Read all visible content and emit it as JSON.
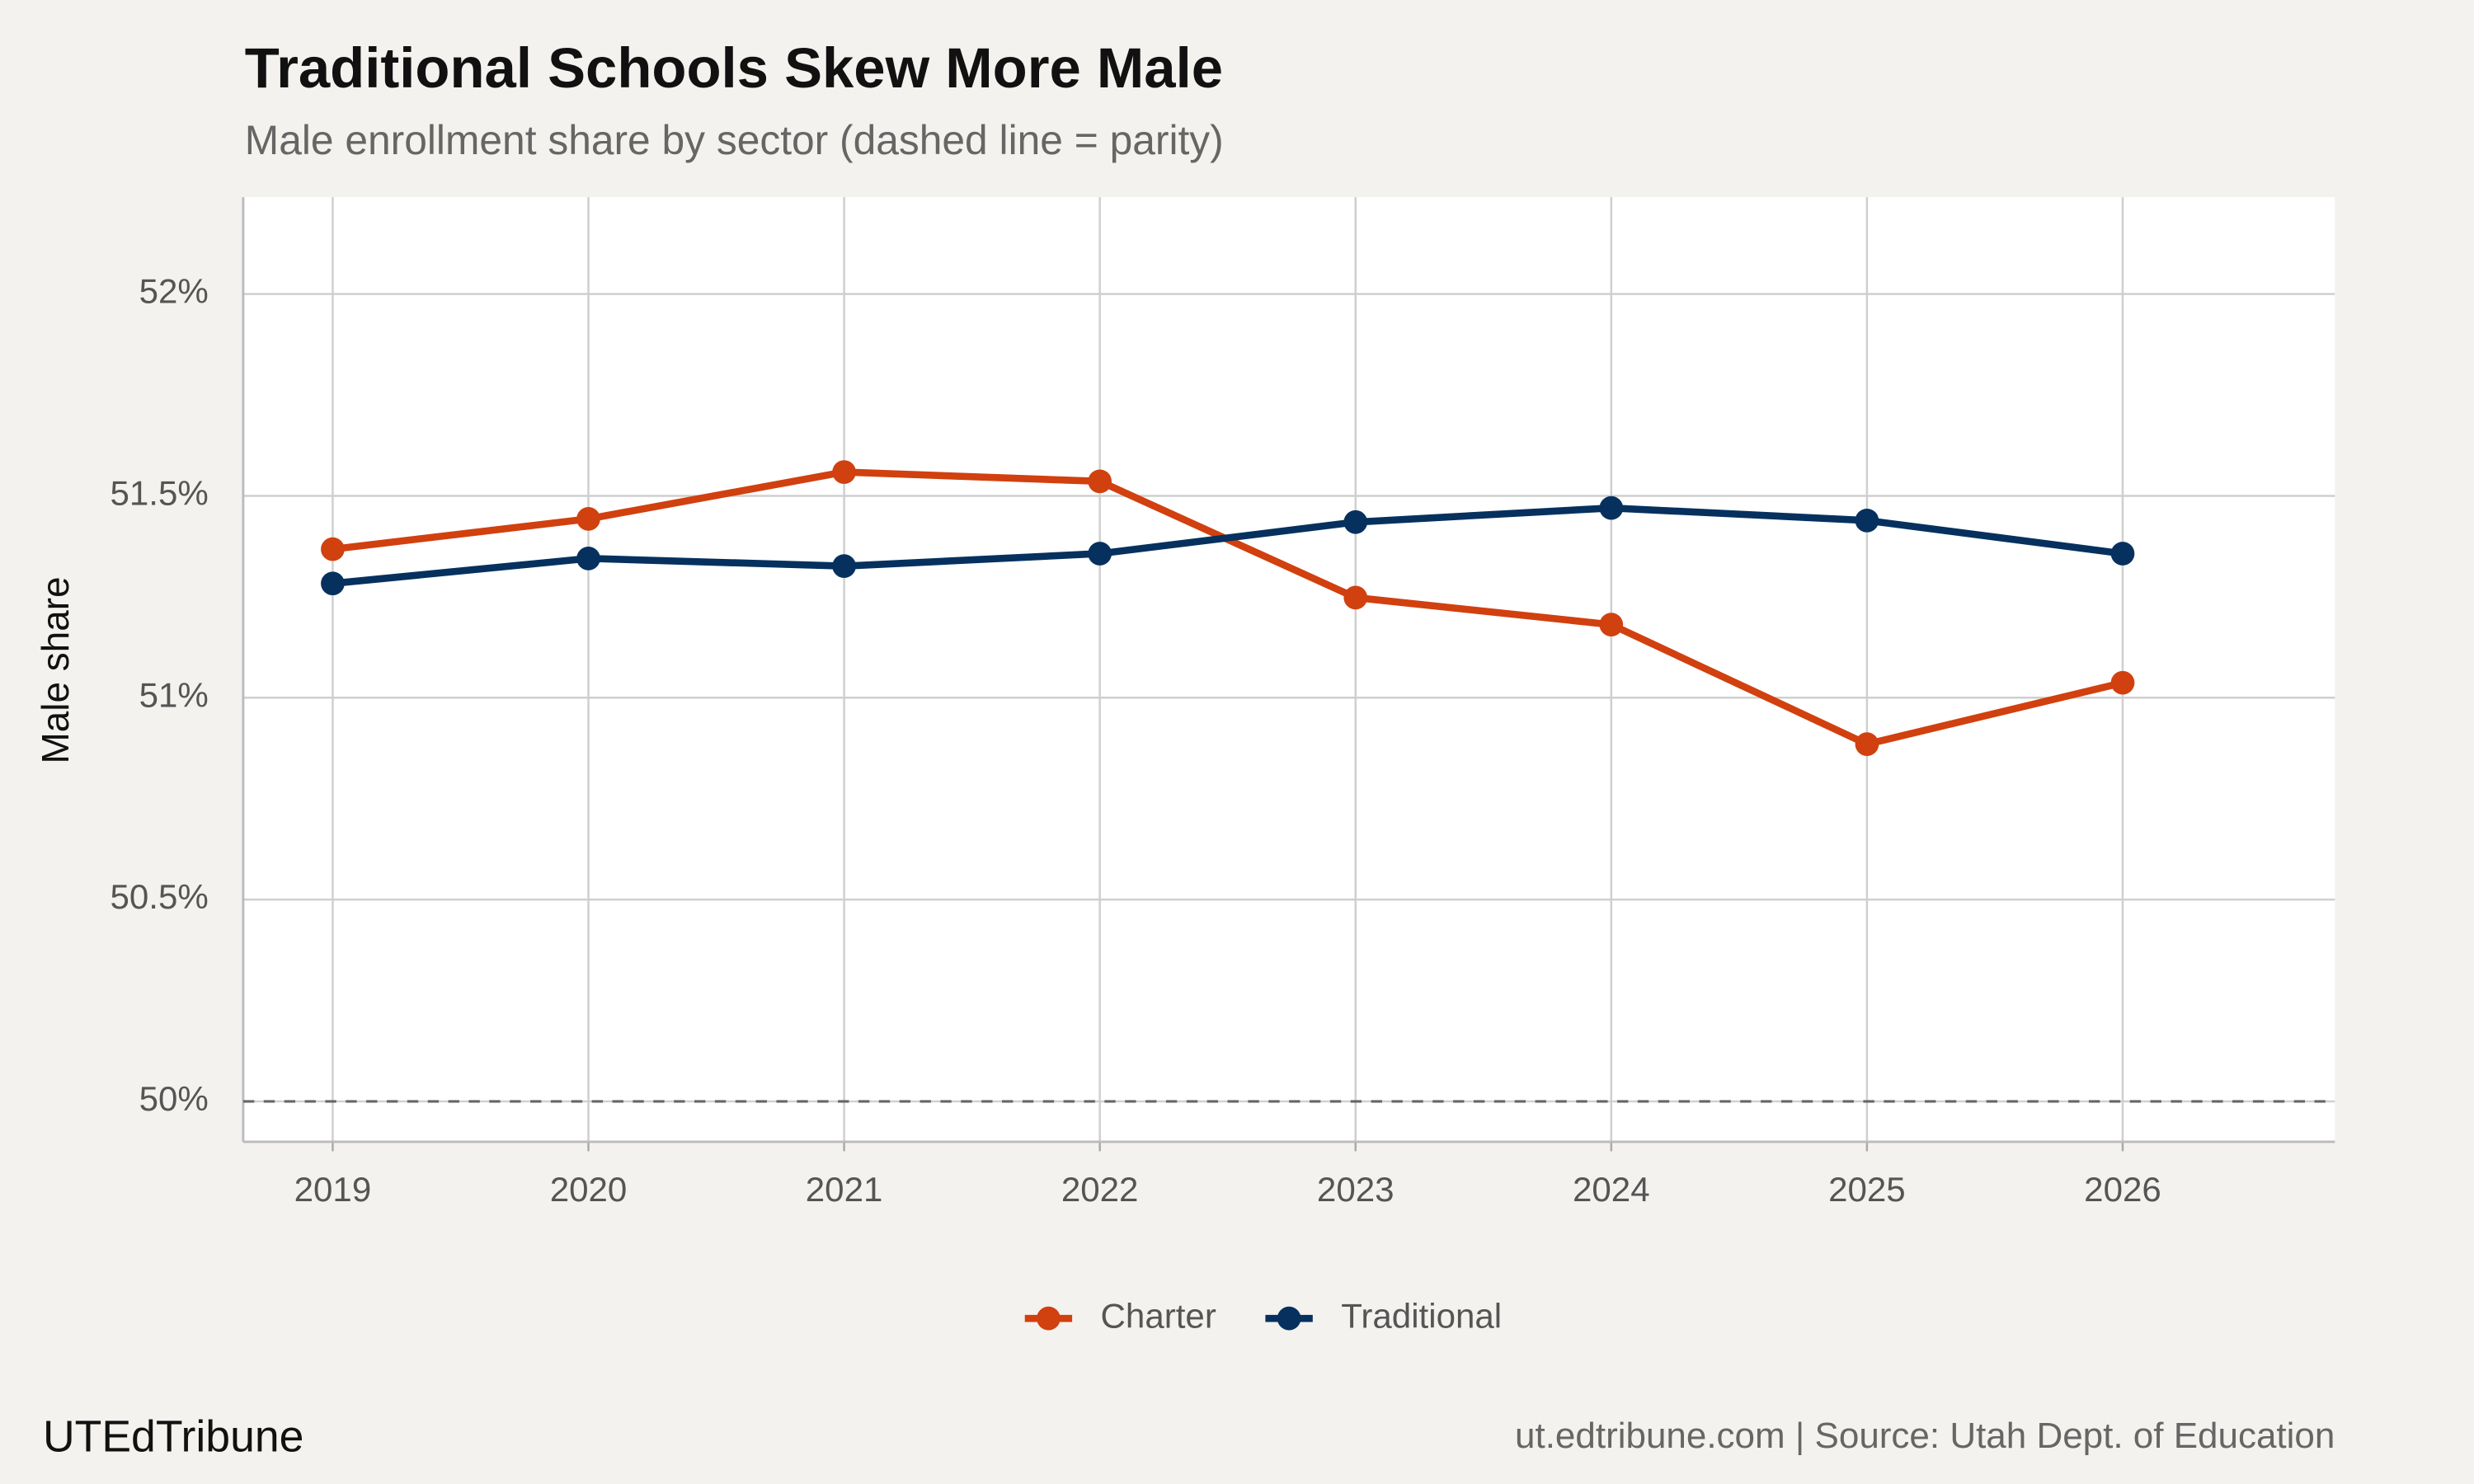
{
  "chart_data": {
    "type": "line",
    "title": "Traditional Schools Skew More Male",
    "subtitle": "Male enrollment share by sector (dashed line = parity)",
    "y_label": "Male share",
    "brand": "UTEdTribune",
    "caption": "ut.edtribune.com | Source: Utah Dept. of Education",
    "x": [
      2019,
      2020,
      2021,
      2022,
      2023,
      2024,
      2025,
      2026
    ],
    "series": [
      {
        "name": "Charter",
        "color": "#d1400f",
        "values": [
          51.368,
          51.443,
          51.559,
          51.536,
          51.248,
          51.181,
          50.885,
          51.037
        ]
      },
      {
        "name": "Traditional",
        "color": "#06315e",
        "values": [
          51.283,
          51.345,
          51.326,
          51.357,
          51.435,
          51.47,
          51.439,
          51.357
        ]
      }
    ],
    "xlim": [
      2018.65,
      2026.83
    ],
    "xticks": [
      2019,
      2020,
      2021,
      2022,
      2023,
      2024,
      2025,
      2026
    ],
    "ylim": [
      49.9,
      52.24
    ],
    "yticks": [
      {
        "value": 50,
        "label": "50%"
      },
      {
        "value": 50.5,
        "label": "50.5%"
      },
      {
        "value": 51,
        "label": "51%"
      },
      {
        "value": 51.5,
        "label": "51.5%"
      },
      {
        "value": 52,
        "label": "52%"
      }
    ],
    "reference_line": 50,
    "grid": true,
    "legend": "bottom"
  }
}
